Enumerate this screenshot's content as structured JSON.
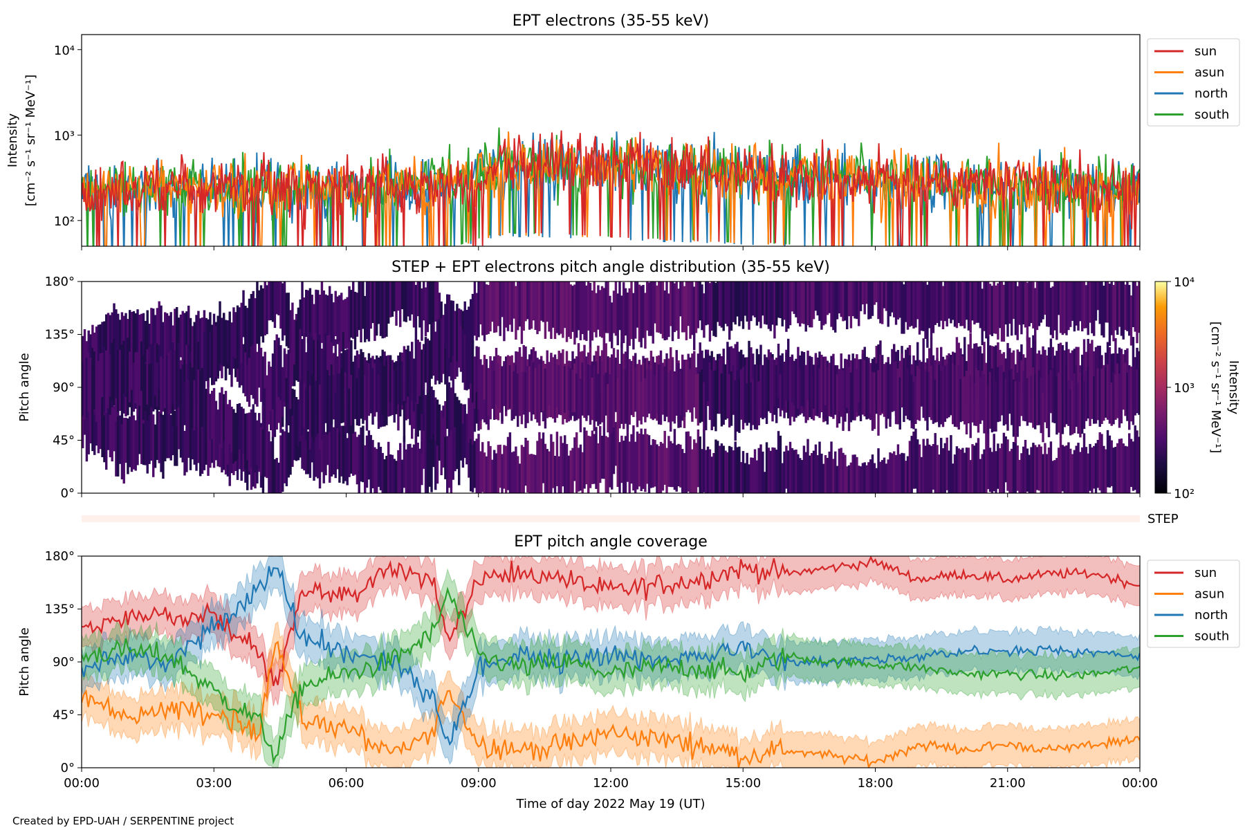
{
  "figure": {
    "credit": "Created by EPD-UAH / SERPENTINE project",
    "xlabel": "Time of day 2022 May 19 (UT)",
    "time_ticks": [
      "00:00",
      "03:00",
      "06:00",
      "09:00",
      "12:00",
      "15:00",
      "18:00",
      "21:00",
      "00:00"
    ]
  },
  "colors": {
    "sun": "#d62728",
    "asun": "#ff7f0e",
    "north": "#1f77b4",
    "south": "#2ca02c"
  },
  "chart_data": [
    {
      "type": "line",
      "title": "EPT electrons (35-55 keV)",
      "ylabel_line1": "Intensity",
      "ylabel_line2": "[cm⁻² s⁻¹ sr⁻¹ MeV⁻¹]",
      "yscale": "log",
      "ylim": [
        50,
        15000
      ],
      "yticks": [
        {
          "value": 100,
          "label": "10²"
        },
        {
          "value": 1000,
          "label": "10³"
        },
        {
          "value": 10000,
          "label": "10⁴"
        }
      ],
      "xlim_hours": [
        0,
        24
      ],
      "legend_position": "outside-right-top",
      "series": [
        {
          "name": "sun",
          "values_approx": [
            [
              0,
              230
            ],
            [
              1,
              250
            ],
            [
              2,
              240
            ],
            [
              3,
              260
            ],
            [
              4,
              270
            ],
            [
              5,
              250
            ],
            [
              6,
              260
            ],
            [
              7,
              250
            ],
            [
              8,
              270
            ],
            [
              9,
              300
            ],
            [
              9.5,
              500
            ],
            [
              10,
              480
            ],
            [
              11,
              460
            ],
            [
              12,
              430
            ],
            [
              13,
              400
            ],
            [
              14,
              380
            ],
            [
              15,
              370
            ],
            [
              16,
              360
            ],
            [
              17,
              330
            ],
            [
              18,
              310
            ],
            [
              19,
              300
            ],
            [
              20,
              280
            ],
            [
              21,
              270
            ],
            [
              22,
              260
            ],
            [
              23,
              250
            ],
            [
              24,
              240
            ]
          ]
        },
        {
          "name": "asun",
          "values_approx": [
            [
              0,
              220
            ],
            [
              2,
              230
            ],
            [
              4,
              250
            ],
            [
              6,
              240
            ],
            [
              8,
              260
            ],
            [
              9.5,
              450
            ],
            [
              12,
              420
            ],
            [
              15,
              360
            ],
            [
              18,
              300
            ],
            [
              21,
              260
            ],
            [
              24,
              230
            ]
          ]
        },
        {
          "name": "north",
          "values_approx": [
            [
              0,
              210
            ],
            [
              2,
              230
            ],
            [
              4,
              240
            ],
            [
              6,
              230
            ],
            [
              8,
              250
            ],
            [
              9.5,
              440
            ],
            [
              12,
              400
            ],
            [
              15,
              350
            ],
            [
              18,
              290
            ],
            [
              21,
              250
            ],
            [
              24,
              230
            ]
          ]
        },
        {
          "name": "south",
          "values_approx": [
            [
              0,
              220
            ],
            [
              2,
              240
            ],
            [
              4,
              260
            ],
            [
              6,
              250
            ],
            [
              8,
              270
            ],
            [
              9.5,
              480
            ],
            [
              12,
              430
            ],
            [
              15,
              370
            ],
            [
              18,
              310
            ],
            [
              21,
              270
            ],
            [
              24,
              240
            ]
          ]
        }
      ]
    },
    {
      "type": "heatmap",
      "title": "STEP + EPT electrons pitch angle distribution (35-55 keV)",
      "ylabel": "Pitch angle",
      "ylim": [
        0,
        180
      ],
      "yticks": [
        "0°",
        "45°",
        "90°",
        "135°",
        "180°"
      ],
      "xlim_hours": [
        0,
        24
      ],
      "colorbar": {
        "scale": "log",
        "range": [
          100,
          10000
        ],
        "ticks": [
          "10²",
          "10³",
          "10⁴"
        ],
        "label_line1": "Intensity",
        "label_line2": "[cm⁻² s⁻¹ sr⁻¹ MeV⁻¹]",
        "colormap": "inferno"
      },
      "typical_intensity_approx": 300
    },
    {
      "type": "bar",
      "label": "STEP",
      "description_note": "thin STEP coverage strip",
      "xlim_hours": [
        0,
        24
      ]
    },
    {
      "type": "line",
      "title": "EPT pitch angle coverage",
      "ylabel": "Pitch angle",
      "ylim": [
        0,
        180
      ],
      "yticks": [
        "0°",
        "45°",
        "90°",
        "135°",
        "180°"
      ],
      "xlim_hours": [
        0,
        24
      ],
      "legend_position": "outside-right-top",
      "series": [
        {
          "name": "sun",
          "values_approx": [
            [
              0,
              118
            ],
            [
              1,
              130
            ],
            [
              2,
              130
            ],
            [
              3,
              128
            ],
            [
              4,
              100
            ],
            [
              4.4,
              70
            ],
            [
              5,
              150
            ],
            [
              6,
              145
            ],
            [
              7,
              170
            ],
            [
              8,
              160
            ],
            [
              8.3,
              110
            ],
            [
              9,
              160
            ],
            [
              10,
              165
            ],
            [
              11,
              160
            ],
            [
              12,
              150
            ],
            [
              13,
              155
            ],
            [
              14,
              160
            ],
            [
              15,
              170
            ],
            [
              16,
              165
            ],
            [
              17,
              170
            ],
            [
              18,
              175
            ],
            [
              19,
              160
            ],
            [
              20,
              165
            ],
            [
              21,
              160
            ],
            [
              22,
              165
            ],
            [
              23,
              165
            ],
            [
              24,
              155
            ]
          ]
        },
        {
          "name": "asun",
          "values_approx": [
            [
              0,
              60
            ],
            [
              1,
              45
            ],
            [
              2,
              50
            ],
            [
              3,
              45
            ],
            [
              4,
              30
            ],
            [
              4.4,
              110
            ],
            [
              5,
              40
            ],
            [
              6,
              35
            ],
            [
              7,
              10
            ],
            [
              8,
              30
            ],
            [
              8.3,
              70
            ],
            [
              9,
              20
            ],
            [
              10,
              15
            ],
            [
              11,
              20
            ],
            [
              12,
              30
            ],
            [
              13,
              25
            ],
            [
              14,
              20
            ],
            [
              15,
              10
            ],
            [
              16,
              15
            ],
            [
              17,
              10
            ],
            [
              18,
              5
            ],
            [
              19,
              20
            ],
            [
              20,
              15
            ],
            [
              21,
              20
            ],
            [
              22,
              15
            ],
            [
              23,
              20
            ],
            [
              24,
              25
            ]
          ]
        },
        {
          "name": "north",
          "values_approx": [
            [
              0,
              85
            ],
            [
              1,
              95
            ],
            [
              2,
              90
            ],
            [
              3,
              120
            ],
            [
              4,
              150
            ],
            [
              4.4,
              170
            ],
            [
              5,
              110
            ],
            [
              6,
              100
            ],
            [
              7,
              90
            ],
            [
              8,
              60
            ],
            [
              8.3,
              20
            ],
            [
              9,
              85
            ],
            [
              10,
              95
            ],
            [
              11,
              90
            ],
            [
              12,
              100
            ],
            [
              13,
              90
            ],
            [
              14,
              95
            ],
            [
              15,
              100
            ],
            [
              16,
              90
            ],
            [
              17,
              90
            ],
            [
              18,
              92
            ],
            [
              19,
              95
            ],
            [
              20,
              100
            ],
            [
              21,
              100
            ],
            [
              22,
              100
            ],
            [
              23,
              98
            ],
            [
              24,
              95
            ]
          ]
        },
        {
          "name": "south",
          "values_approx": [
            [
              0,
              95
            ],
            [
              1,
              100
            ],
            [
              2,
              95
            ],
            [
              3,
              65
            ],
            [
              4,
              40
            ],
            [
              4.4,
              10
            ],
            [
              5,
              70
            ],
            [
              6,
              80
            ],
            [
              7,
              90
            ],
            [
              8,
              115
            ],
            [
              8.3,
              150
            ],
            [
              9,
              95
            ],
            [
              10,
              85
            ],
            [
              11,
              90
            ],
            [
              12,
              80
            ],
            [
              13,
              85
            ],
            [
              14,
              85
            ],
            [
              15,
              80
            ],
            [
              16,
              95
            ],
            [
              17,
              90
            ],
            [
              18,
              88
            ],
            [
              19,
              85
            ],
            [
              20,
              80
            ],
            [
              21,
              80
            ],
            [
              22,
              78
            ],
            [
              23,
              80
            ],
            [
              24,
              85
            ]
          ]
        }
      ]
    }
  ]
}
